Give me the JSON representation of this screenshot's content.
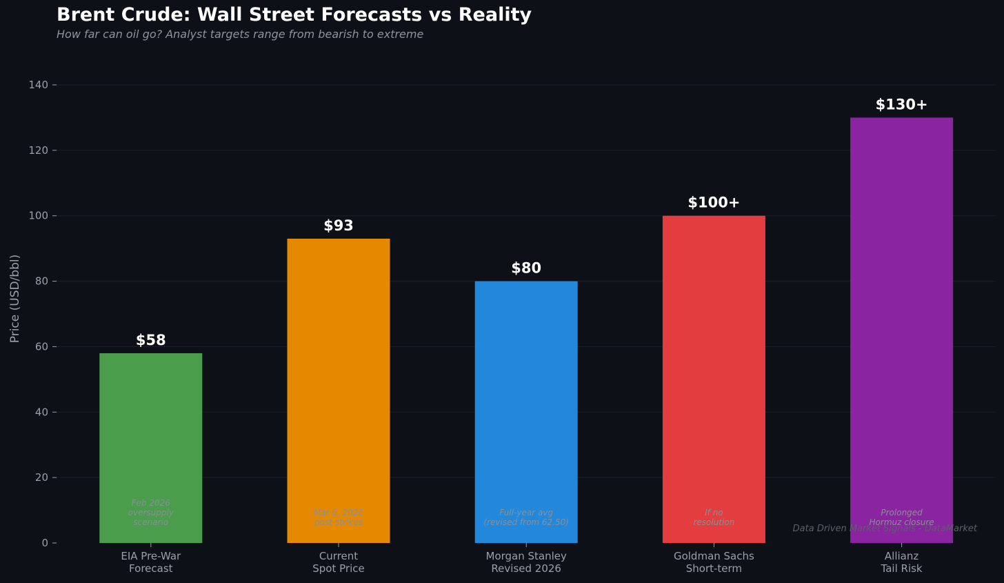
{
  "header": {
    "title": "Brent Crude: Wall Street Forecasts vs Reality",
    "subtitle": "How far can oil go? Analyst targets range from bearish to extreme"
  },
  "watermark": "Data Driven Market Signals - DataMarket",
  "chart_data": {
    "type": "bar",
    "title": "Brent Crude: Wall Street Forecasts vs Reality",
    "subtitle": "How far can oil go? Analyst targets range from bearish to extreme",
    "xlabel": "",
    "ylabel": "Price (USD/bbl)",
    "ylim": [
      0,
      145
    ],
    "yticks": [
      0,
      20,
      40,
      60,
      80,
      100,
      120,
      140
    ],
    "grid": "horizontal",
    "categories": [
      [
        "EIA Pre-War",
        "Forecast"
      ],
      [
        "Current",
        "Spot Price"
      ],
      [
        "Morgan Stanley",
        "Revised 2026"
      ],
      [
        "Goldman Sachs",
        "Short-term"
      ],
      [
        "Allianz",
        "Tail Risk"
      ]
    ],
    "values": [
      58,
      93,
      80,
      100,
      130
    ],
    "value_labels": [
      "$58",
      "$93",
      "$80",
      "$100+",
      "$130+"
    ],
    "colors": [
      "#4a9e4b",
      "#e58a00",
      "#2188dc",
      "#e33d3f",
      "#8b24a0"
    ],
    "notes": [
      [
        "Feb 2026",
        "oversupply",
        "scenario"
      ],
      [
        "Mar 6, 2026",
        "post-strikes"
      ],
      [
        "Full-year avg",
        "(revised from 62.50)"
      ],
      [
        "If no",
        "resolution"
      ],
      [
        "Prolonged",
        "Hormuz closure"
      ]
    ]
  }
}
